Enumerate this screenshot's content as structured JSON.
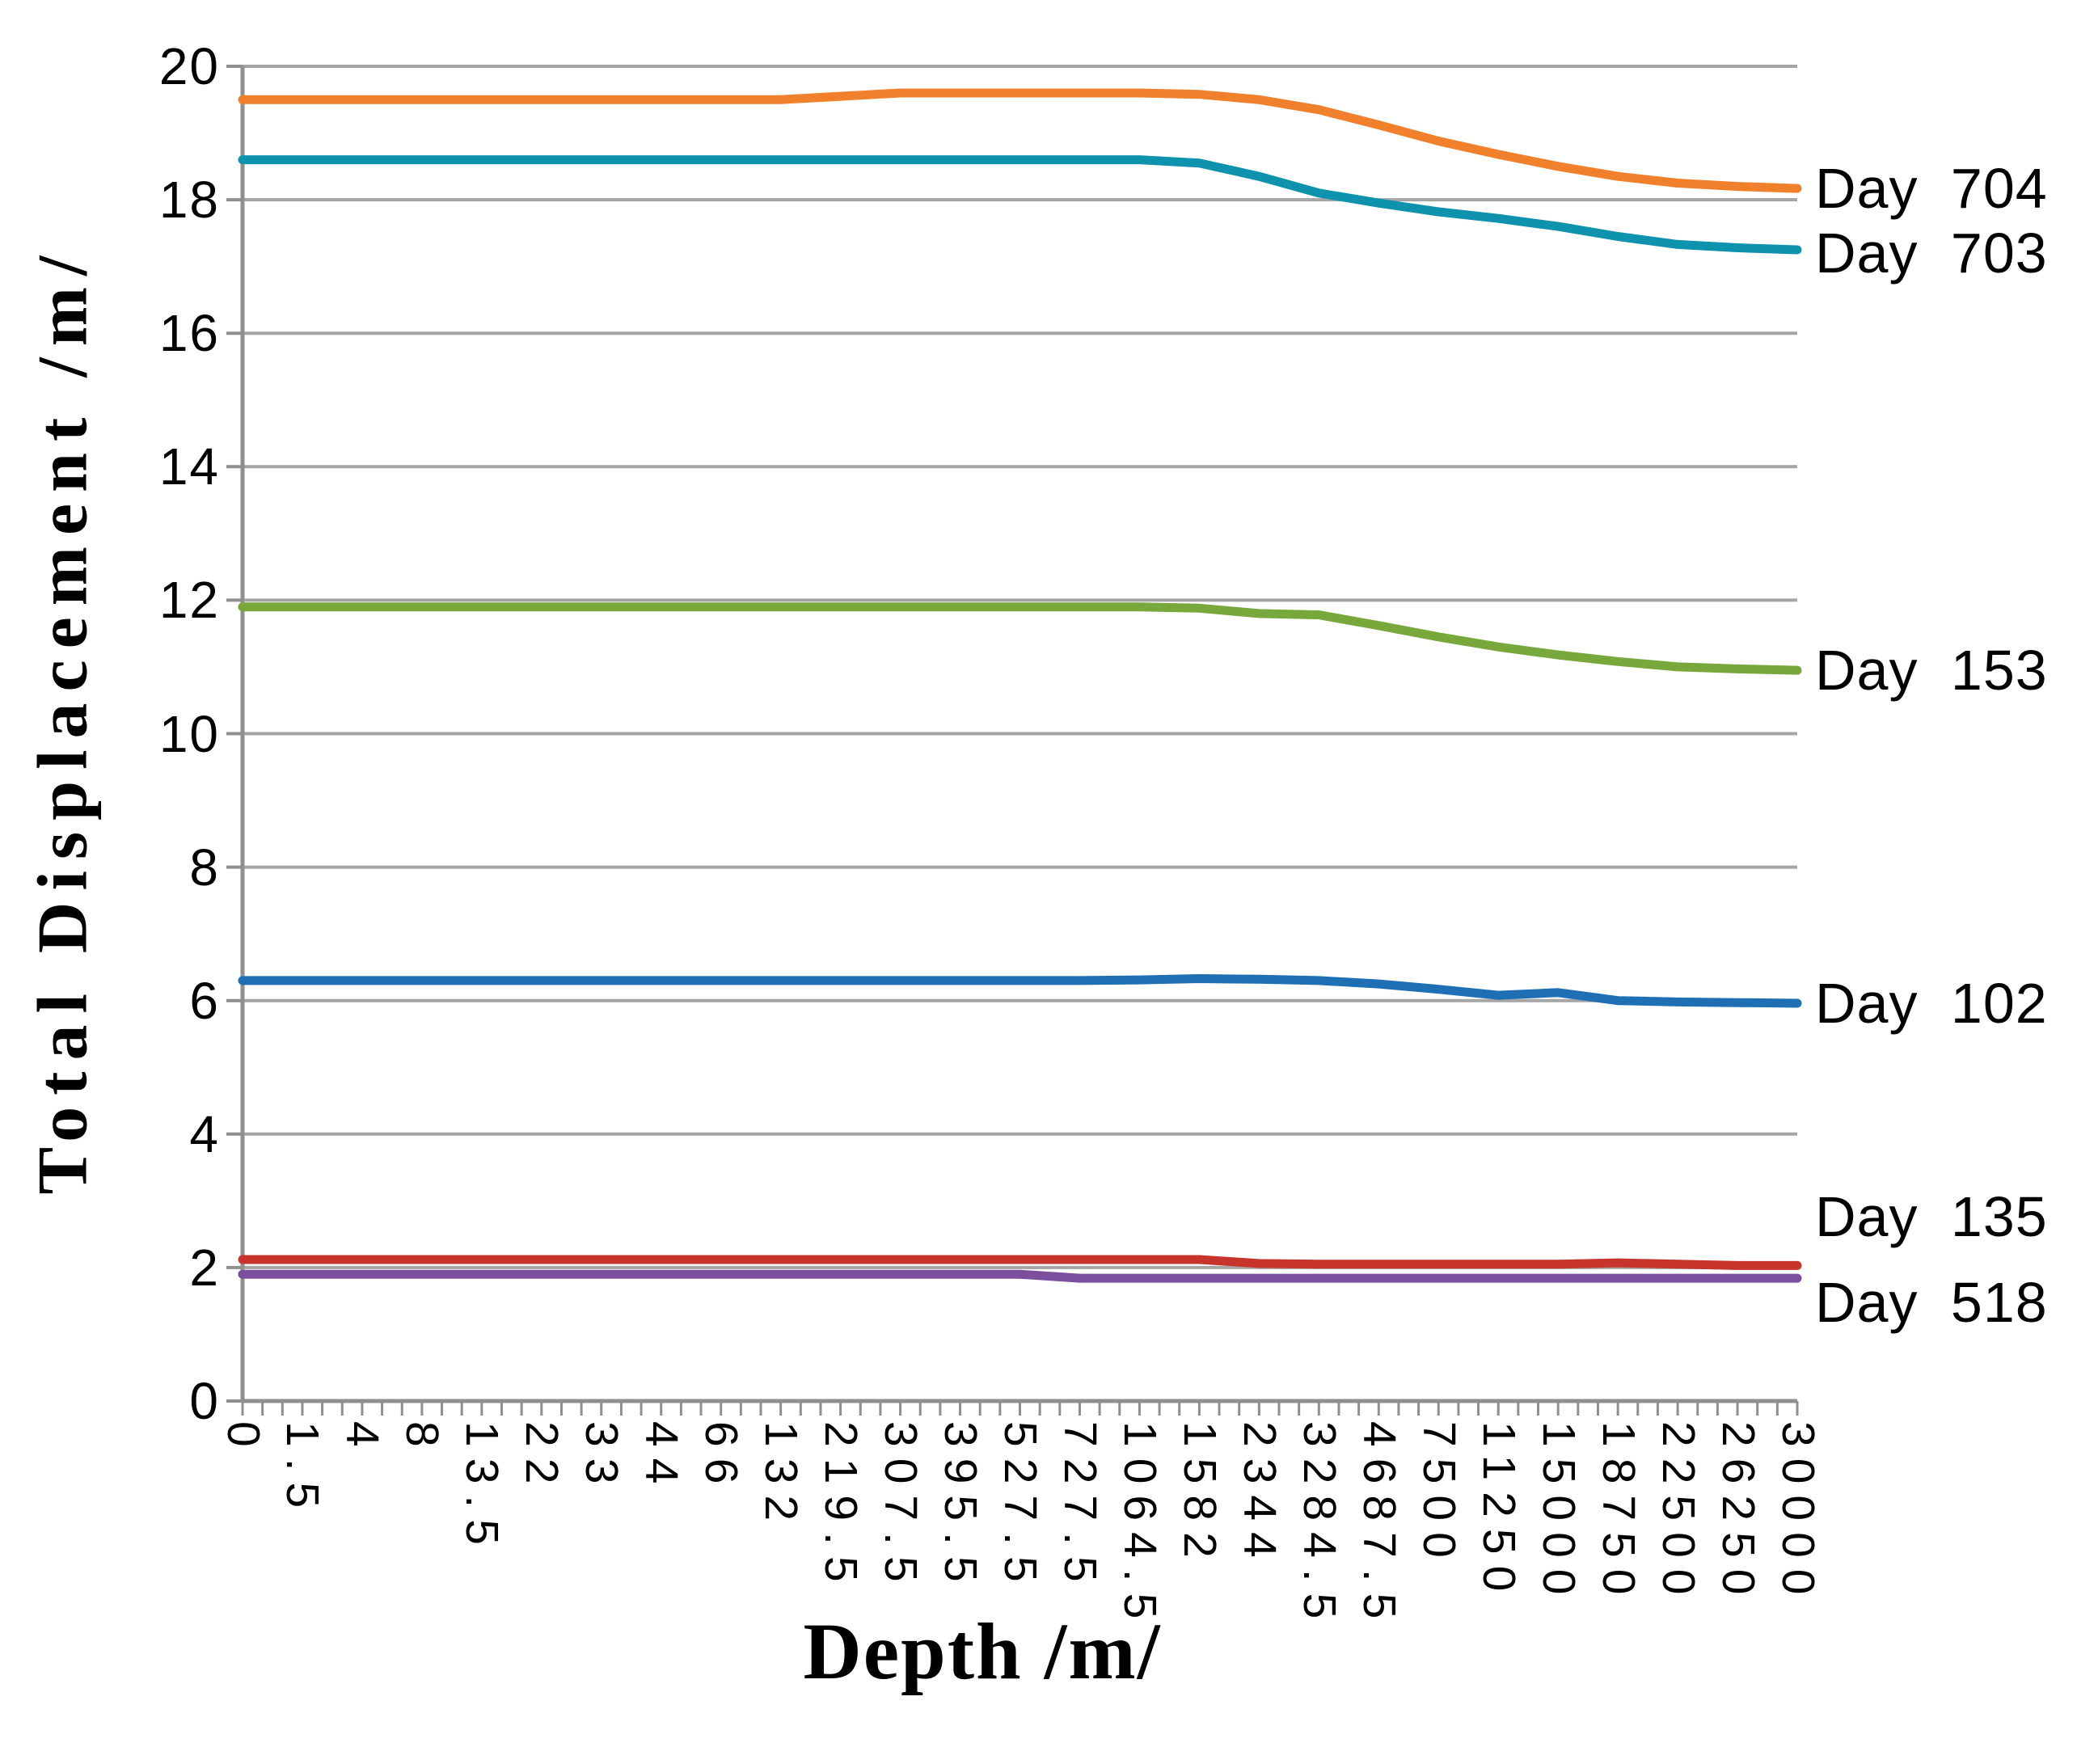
{
  "colors": {
    "background": "#ffffff",
    "gridline": "#A5A5A5",
    "axis": "#8F8F8F",
    "text": "#000000"
  },
  "chart_data": {
    "type": "line",
    "xlabel": "Depth /m/",
    "ylabel": "Total Displacement /m/",
    "ylim": [
      0,
      20
    ],
    "yticks": [
      0,
      2,
      4,
      6,
      8,
      10,
      12,
      14,
      16,
      18,
      20
    ],
    "grid": "horizontal",
    "legend_position": "right-end-of-line-labels",
    "categories": [
      "0",
      "1.5",
      "4",
      "8",
      "13.5",
      "22",
      "33",
      "44",
      "66",
      "132",
      "219.5",
      "307.5",
      "395.5",
      "527.5",
      "727.5",
      "1064.5",
      "1582",
      "2344",
      "3284.5",
      "4687.5",
      "7500",
      "11250",
      "15000",
      "18750",
      "22500",
      "26250",
      "30000"
    ],
    "series": [
      {
        "name": "Day 704",
        "color": "#F0802C",
        "values": [
          19.5,
          19.5,
          19.5,
          19.5,
          19.5,
          19.5,
          19.5,
          19.5,
          19.5,
          19.5,
          19.55,
          19.6,
          19.6,
          19.6,
          19.6,
          19.6,
          19.58,
          19.5,
          19.35,
          19.12,
          18.88,
          18.68,
          18.5,
          18.35,
          18.25,
          18.2,
          18.17
        ]
      },
      {
        "name": "Day 703",
        "color": "#0F92AE",
        "values": [
          18.6,
          18.6,
          18.6,
          18.6,
          18.6,
          18.6,
          18.6,
          18.6,
          18.6,
          18.6,
          18.6,
          18.6,
          18.6,
          18.6,
          18.6,
          18.6,
          18.55,
          18.35,
          18.1,
          17.95,
          17.82,
          17.72,
          17.6,
          17.45,
          17.33,
          17.28,
          17.25
        ]
      },
      {
        "name": "Day 153",
        "color": "#78A83C",
        "values": [
          11.9,
          11.9,
          11.9,
          11.9,
          11.9,
          11.9,
          11.9,
          11.9,
          11.9,
          11.9,
          11.9,
          11.9,
          11.9,
          11.9,
          11.9,
          11.9,
          11.88,
          11.8,
          11.78,
          11.62,
          11.45,
          11.3,
          11.18,
          11.08,
          11.0,
          10.97,
          10.95
        ]
      },
      {
        "name": "Day 102",
        "color": "#1F6FB5",
        "values": [
          6.3,
          6.3,
          6.3,
          6.3,
          6.3,
          6.3,
          6.3,
          6.3,
          6.3,
          6.3,
          6.3,
          6.3,
          6.3,
          6.3,
          6.3,
          6.31,
          6.33,
          6.32,
          6.3,
          6.25,
          6.17,
          6.08,
          6.12,
          6.0,
          5.98,
          5.97,
          5.96
        ]
      },
      {
        "name": "Day 135",
        "color": "#C6342C",
        "values": [
          2.12,
          2.12,
          2.12,
          2.12,
          2.12,
          2.12,
          2.12,
          2.12,
          2.12,
          2.12,
          2.12,
          2.12,
          2.12,
          2.12,
          2.12,
          2.12,
          2.12,
          2.06,
          2.05,
          2.05,
          2.05,
          2.05,
          2.05,
          2.07,
          2.05,
          2.03,
          2.03
        ]
      },
      {
        "name": "Day 518",
        "color": "#7B4E9E",
        "values": [
          1.9,
          1.9,
          1.9,
          1.9,
          1.9,
          1.9,
          1.9,
          1.9,
          1.9,
          1.9,
          1.9,
          1.9,
          1.9,
          1.9,
          1.84,
          1.84,
          1.84,
          1.84,
          1.84,
          1.84,
          1.84,
          1.84,
          1.84,
          1.84,
          1.84,
          1.84,
          1.84
        ]
      }
    ]
  }
}
